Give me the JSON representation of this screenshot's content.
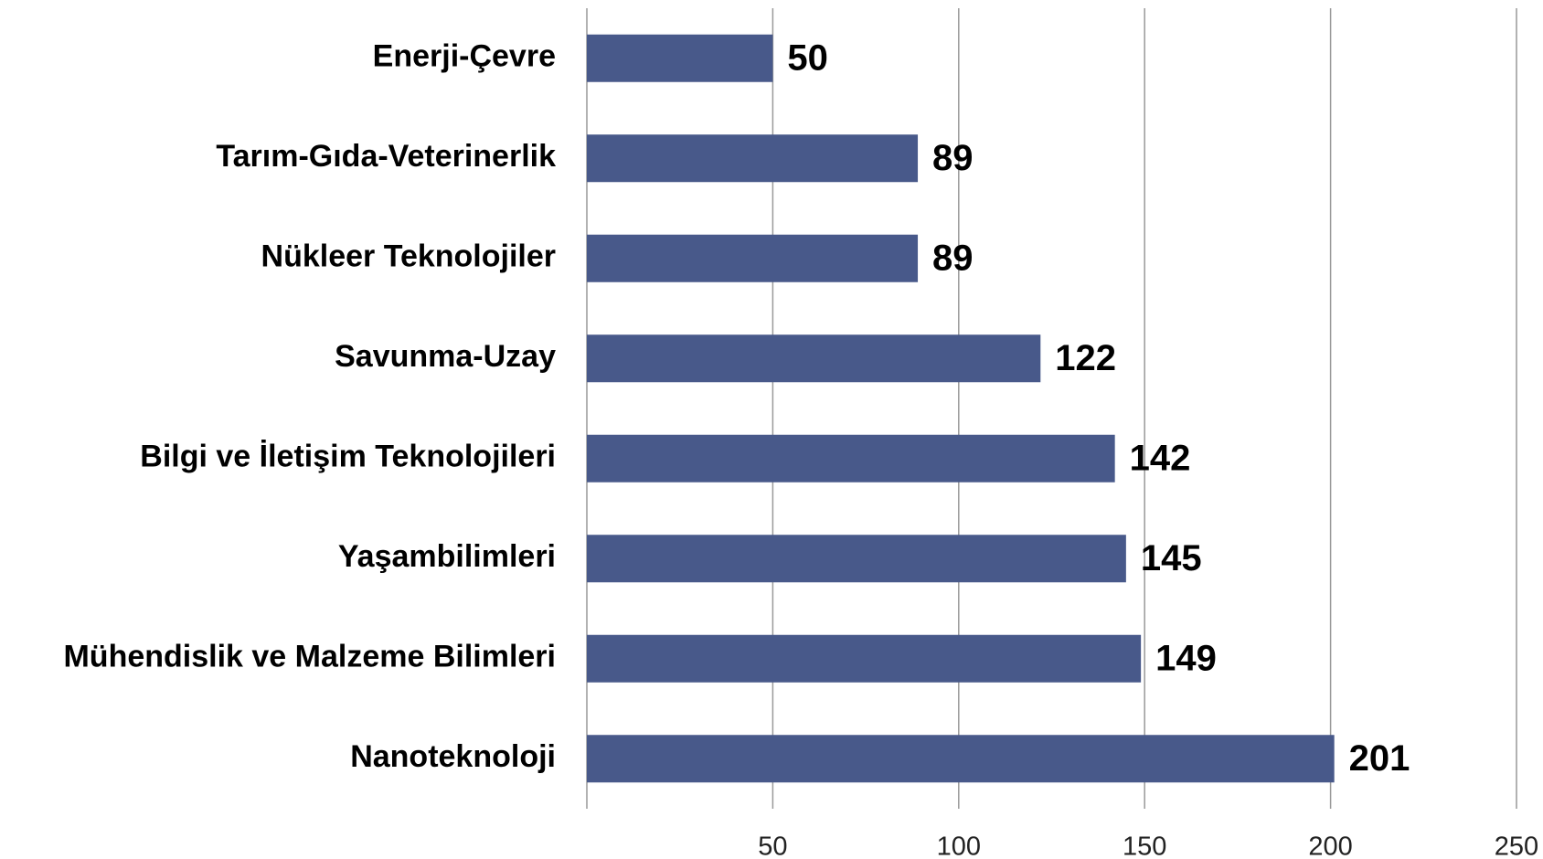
{
  "chart_data": {
    "type": "bar",
    "orientation": "horizontal",
    "categories": [
      "Enerji-Çevre",
      "Tarım-Gıda-Veterinerlik",
      "Nükleer Teknolojiler",
      "Savunma-Uzay",
      "Bilgi ve İletişim Teknolojileri",
      "Yaşambilimleri",
      "Mühendislik ve Malzeme Bilimleri",
      "Nanoteknoloji"
    ],
    "values": [
      50,
      89,
      89,
      122,
      142,
      145,
      149,
      201
    ],
    "color": "#48598a",
    "xlim": [
      0,
      250
    ],
    "xticks": [
      50,
      100,
      150,
      200,
      250
    ],
    "grid": true
  }
}
